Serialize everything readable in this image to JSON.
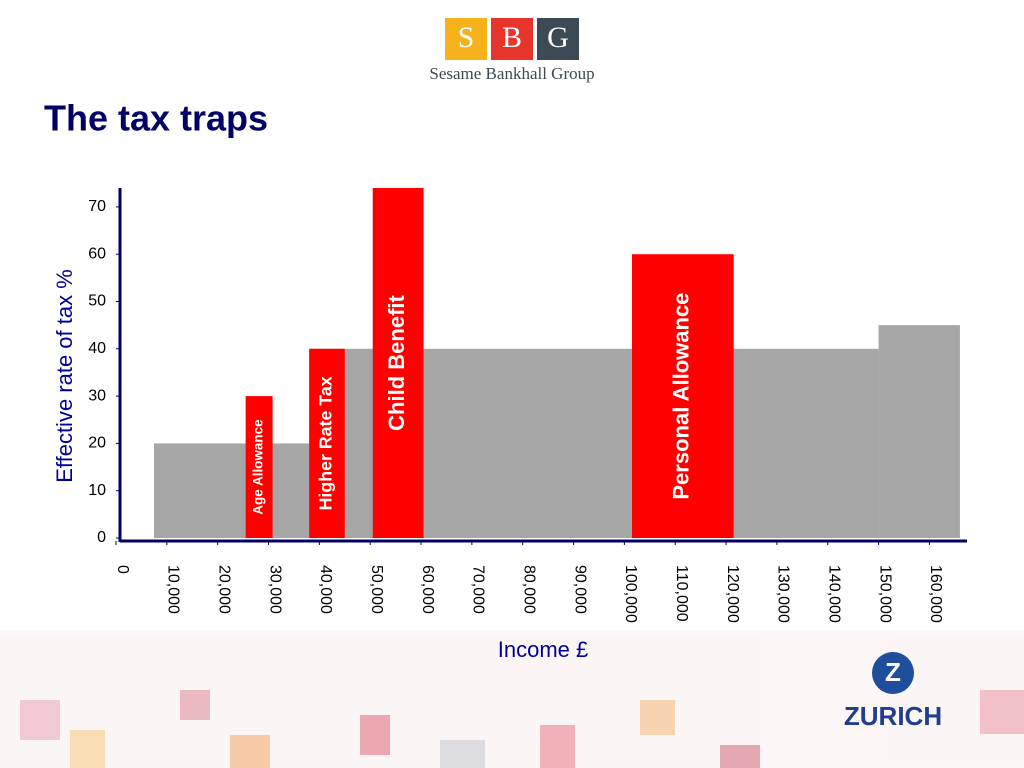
{
  "header": {
    "logo_letters": [
      "S",
      "B",
      "G"
    ],
    "logo_caption": "Sesame Bankhall Group",
    "title": "The tax traps"
  },
  "footer": {
    "brand": "ZURICH"
  },
  "chart_data": {
    "type": "bar",
    "xlabel": "Income £",
    "ylabel": "Effective rate of tax %",
    "xlim": [
      0,
      167000
    ],
    "ylim": [
      0,
      74
    ],
    "xticks": [
      0,
      {
        "value": 10000,
        "label": "10,000"
      },
      {
        "value": 20000,
        "label": "20,000"
      },
      {
        "value": 30000,
        "label": "30,000"
      },
      {
        "value": 40000,
        "label": "40,000"
      },
      {
        "value": 50000,
        "label": "50,000"
      },
      {
        "value": 60000,
        "label": "60,000"
      },
      {
        "value": 70000,
        "label": "70,000"
      },
      {
        "value": 80000,
        "label": "80,000"
      },
      {
        "value": 90000,
        "label": "90,000"
      },
      {
        "value": 100000,
        "label": "100,000"
      },
      {
        "value": 110000,
        "label": "110,000"
      },
      {
        "value": 120000,
        "label": "120,000"
      },
      {
        "value": 130000,
        "label": "130,000"
      },
      {
        "value": 140000,
        "label": "140,000"
      },
      {
        "value": 150000,
        "label": "150,000"
      },
      {
        "value": 160000,
        "label": "160,000"
      }
    ],
    "yticks": [
      0,
      10,
      20,
      30,
      40,
      50,
      60,
      70
    ],
    "bars": [
      {
        "start": 7475,
        "end": 38000,
        "value": 20,
        "color": "#a6a6a6"
      },
      {
        "start": 38000,
        "end": 150000,
        "value": 40,
        "color": "#a6a6a6"
      },
      {
        "start": 150000,
        "end": 166000,
        "value": 45,
        "color": "#a6a6a6"
      },
      {
        "start": 25500,
        "end": 30800,
        "value": 30,
        "color": "#ff0000",
        "label": "Age Allowance"
      },
      {
        "start": 38000,
        "end": 45000,
        "value": 40,
        "color": "#ff0000",
        "label": "Higher Rate Tax"
      },
      {
        "start": 50500,
        "end": 60500,
        "value": 74,
        "color": "#ff0000",
        "label": "Child Benefit"
      },
      {
        "start": 101500,
        "end": 121500,
        "value": 60,
        "color": "#ff0000",
        "label": "Personal Allowance"
      }
    ]
  }
}
